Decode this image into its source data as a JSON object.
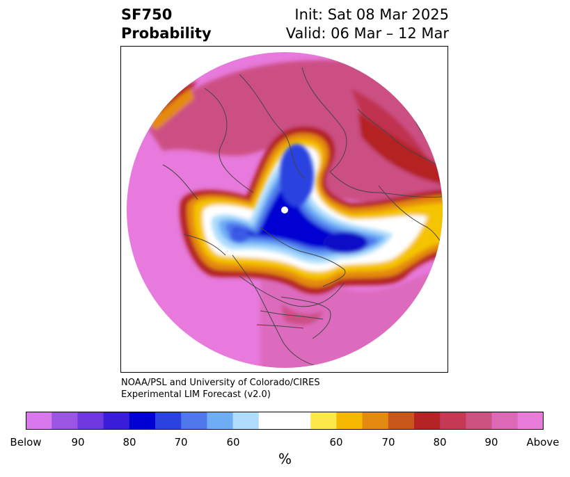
{
  "header": {
    "title_line1": "SF750",
    "title_line2": "Probability",
    "init_text": "Init: Sat 08 Mar 2025",
    "valid_text": "Valid: 06 Mar – 12 Mar"
  },
  "credit": {
    "line1": "NOAA/PSL and University of Colorado/CIRES",
    "line2": "Experimental LIM Forecast (v2.0)"
  },
  "colorbar": {
    "colors": [
      "#d878ec",
      "#9a55e2",
      "#6e3ae0",
      "#3a1dd8",
      "#0000d2",
      "#2a42e0",
      "#4e78ec",
      "#6faef4",
      "#addcfc",
      "#ffffff",
      "#ffffff",
      "#fde84a",
      "#f5b700",
      "#e58a10",
      "#c9561a",
      "#b42424",
      "#c43a54",
      "#cc5282",
      "#dc68b6",
      "#e87ad8"
    ],
    "tick_labels": [
      "Below",
      "90",
      "80",
      "70",
      "60",
      "60",
      "70",
      "80",
      "90",
      "Above"
    ],
    "label": "%"
  },
  "map": {
    "projection": "north polar stereographic",
    "field_colors": {
      "background": "#e77adc",
      "deep_above": "#cc4f84",
      "red_above": "#b42424",
      "orange": "#e58a10",
      "yellow": "#f5c400",
      "light_blue": "#addcfc",
      "mid_blue": "#4e78ec",
      "deep_blue": "#0000d2",
      "land_lines": "#444444"
    }
  }
}
